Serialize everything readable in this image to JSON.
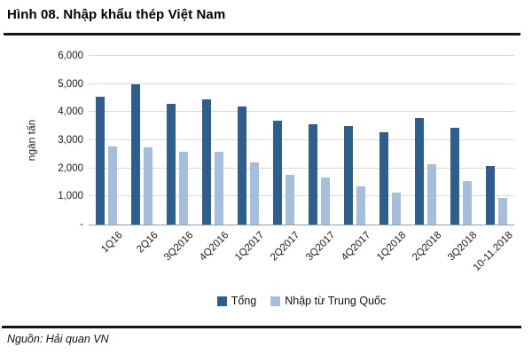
{
  "title": "Hình 08. Nhập khẩu thép Việt Nam",
  "source": "Nguồn: Hải quan VN",
  "colors": {
    "total_bar": "#2E5E8C",
    "china_bar": "#A4BEDC",
    "gridline": "#D9D9D9",
    "axis_line": "#9E9E9E",
    "rule_line": "#141414"
  },
  "chart_data": {
    "type": "bar",
    "title": "Hình 08. Nhập khẩu thép Việt Nam",
    "xlabel": "",
    "ylabel": "ngàn tấn",
    "ylim": [
      0,
      6000
    ],
    "ytick_step": 1000,
    "ytick_labels": [
      "-",
      "1,000",
      "2,000",
      "3,000",
      "4,000",
      "5,000",
      "6,000"
    ],
    "grid": true,
    "legend_position": "bottom",
    "categories": [
      "1Q16",
      "2Q16",
      "3Q2016",
      "4Q2016",
      "1Q2017",
      "2Q2017",
      "3Q2017",
      "4Q2017",
      "1Q2018",
      "2Q2018",
      "3Q2018",
      "10-11.2018"
    ],
    "series": [
      {
        "name": "Tổng",
        "color": "#2E5E8C",
        "values": [
          4550,
          5000,
          4300,
          4450,
          4200,
          3700,
          3580,
          3500,
          3300,
          3780,
          3450,
          2100
        ]
      },
      {
        "name": "Nhập từ Trung Quốc",
        "color": "#A4BEDC",
        "values": [
          2780,
          2760,
          2600,
          2600,
          2200,
          1760,
          1670,
          1350,
          1130,
          2150,
          1550,
          960
        ]
      }
    ]
  }
}
